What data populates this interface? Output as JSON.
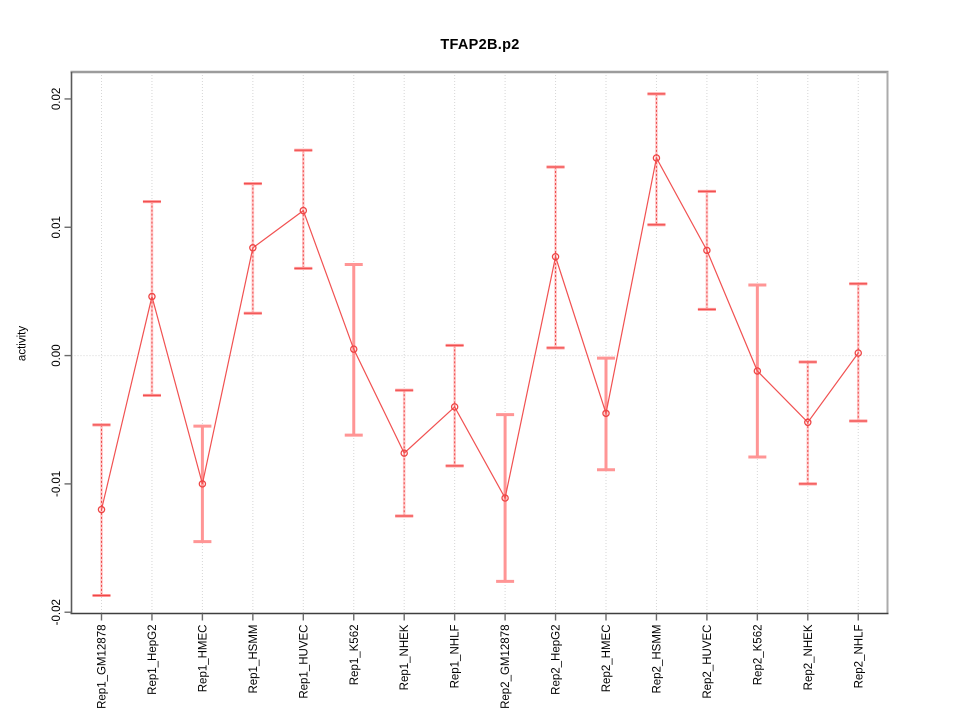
{
  "title": "TFAP2B.p2",
  "chart_data": {
    "type": "line",
    "title": "TFAP2B.p2",
    "xlabel": "",
    "ylabel": "activity",
    "ylim": [
      -0.0201,
      0.0221
    ],
    "yticks": [
      0.02,
      0.01,
      0.0,
      -0.01,
      -0.02
    ],
    "ytick_labels": [
      "0.02",
      "0.01",
      "0.00",
      "-0.01",
      "-0.02"
    ],
    "grid": "dotted vertical gridline at every category; dotted horizontal gridline at y=0 only",
    "legend": "none",
    "marker": "open-circle",
    "error_bars": true,
    "categories": [
      "Rep1_GM12878",
      "Rep1_HepG2",
      "Rep1_HMEC",
      "Rep1_HSMM",
      "Rep1_HUVEC",
      "Rep1_K562",
      "Rep1_NHEK",
      "Rep1_NHLF",
      "Rep2_GM12878",
      "Rep2_HepG2",
      "Rep2_HMEC",
      "Rep2_HSMM",
      "Rep2_HUVEC",
      "Rep2_K562",
      "Rep2_NHEK",
      "Rep2_NHLF"
    ],
    "series": [
      {
        "name": "activity",
        "values": [
          -0.012,
          0.0046,
          -0.01,
          0.0084,
          0.0113,
          0.0005,
          -0.0076,
          -0.004,
          -0.0111,
          0.0077,
          -0.0045,
          0.0154,
          0.0082,
          -0.0012,
          -0.0052,
          0.0002
        ],
        "ci_lower": [
          -0.0187,
          -0.0031,
          -0.0145,
          0.0033,
          0.0068,
          -0.0062,
          -0.0125,
          -0.0086,
          -0.0176,
          0.0006,
          -0.0089,
          0.0102,
          0.0036,
          -0.0079,
          -0.01,
          -0.0051
        ],
        "ci_upper": [
          -0.0054,
          0.012,
          -0.0055,
          0.0134,
          0.016,
          0.0071,
          -0.0027,
          0.0008,
          -0.0046,
          0.0147,
          -0.0002,
          0.0204,
          0.0128,
          0.0055,
          -0.0005,
          0.0056
        ],
        "bar_style": [
          "dashed",
          "dashed",
          "thick",
          "dashed",
          "dashed",
          "thick",
          "dashed",
          "dashed",
          "thick",
          "dashed",
          "thick",
          "dashed",
          "dashed",
          "thick",
          "dashed",
          "dashed"
        ]
      }
    ],
    "colors": {
      "series_line": "#f15151",
      "point_stroke": "#ee4545",
      "error_bar_dark": "#ee4747",
      "error_bar_light": "#ff9595",
      "error_bar_faint": "#ffc9c9",
      "grid": "#d6d6d6",
      "box_top": "#9c9c9c",
      "box_right": "#ababab",
      "box_bottom": "#3f3f3f",
      "box_left": "#5a5a5a",
      "tick": "#6b6b6b",
      "text": "#000000"
    }
  }
}
